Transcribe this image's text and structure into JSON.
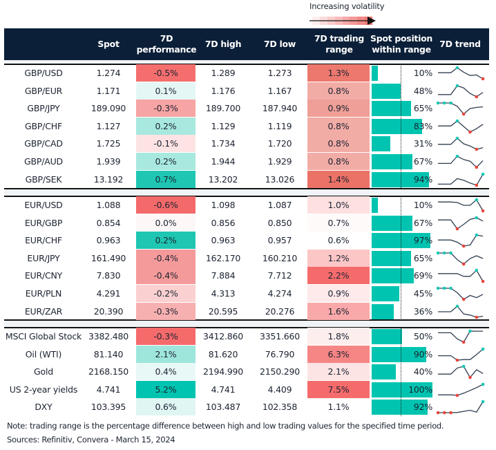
{
  "legend": {
    "label": "Increasing volatility",
    "gradient": [
      "#fdeeee",
      "#fbdcdc",
      "#f9cccc",
      "#f7bcbc",
      "#f5aaaa",
      "#f39a98",
      "#f08a86",
      "#ee7a74"
    ]
  },
  "colors": {
    "header_bg": "#0b1f38",
    "bar": "#00c4b0",
    "max_marker": "#19c7b5",
    "min_marker": "#e8453c",
    "line": "#2f3e50"
  },
  "headers": {
    "spot": "Spot",
    "perf": "7D performance",
    "high": "7D high",
    "low": "7D low",
    "range": "7D trading range",
    "position": "Spot position within range",
    "trend": "7D trend"
  },
  "groups": [
    {
      "rows": [
        {
          "name": "GBP/USD",
          "spot": "1.274",
          "perf": "-0.5%",
          "perf_color": "#f56e6e",
          "high": "1.289",
          "low": "1.273",
          "range": "1.3%",
          "range_color": "#ec786e",
          "position": 10,
          "position_label": "10%",
          "trend": [
            0.55,
            0.55,
            0.55,
            1,
            0.6,
            0.3,
            0.35,
            0
          ]
        },
        {
          "name": "GBP/EUR",
          "spot": "1.171",
          "perf": "0.1%",
          "perf_color": "#e4f7f4",
          "high": "1.176",
          "low": "1.167",
          "range": "0.8%",
          "range_color": "#f2aca6",
          "position": 48,
          "position_label": "48%",
          "trend": [
            0.2,
            0.2,
            0.2,
            1,
            0.8,
            0.3,
            0,
            0.4
          ]
        },
        {
          "name": "GBP/JPY",
          "spot": "189.090",
          "perf": "-0.3%",
          "perf_color": "#f6a4a4",
          "high": "189.700",
          "low": "187.940",
          "range": "0.9%",
          "range_color": "#ef9f97",
          "position": 65,
          "position_label": "65%",
          "trend": [
            1,
            1,
            1,
            0.7,
            0,
            0.5,
            0.6,
            0.65
          ]
        },
        {
          "name": "GBP/CHF",
          "spot": "1.127",
          "perf": "0.2%",
          "perf_color": "#a8e9df",
          "high": "1.129",
          "low": "1.119",
          "range": "0.8%",
          "range_color": "#f2aca6",
          "position": 83,
          "position_label": "83%",
          "trend": [
            0.55,
            0.55,
            0.55,
            1,
            0.5,
            0,
            0.3,
            0.7
          ]
        },
        {
          "name": "GBP/CAD",
          "spot": "1.725",
          "perf": "-0.1%",
          "perf_color": "#fde3e3",
          "high": "1.734",
          "low": "1.720",
          "range": "0.8%",
          "range_color": "#f2aca6",
          "position": 31,
          "position_label": "31%",
          "trend": [
            0.45,
            0.45,
            0.45,
            1,
            0.5,
            0.3,
            0,
            0.15
          ]
        },
        {
          "name": "GBP/AUD",
          "spot": "1.939",
          "perf": "0.2%",
          "perf_color": "#a8e9df",
          "high": "1.944",
          "low": "1.929",
          "range": "0.8%",
          "range_color": "#f2aca6",
          "position": 67,
          "position_label": "67%",
          "trend": [
            0.35,
            0.35,
            0.35,
            1,
            0.7,
            0.55,
            0,
            0.6
          ]
        },
        {
          "name": "GBP/SEK",
          "spot": "13.192",
          "perf": "0.7%",
          "perf_color": "#1fc7b3",
          "high": "13.202",
          "low": "13.026",
          "range": "1.4%",
          "range_color": "#eb7266",
          "position": 94,
          "position_label": "94%",
          "trend": [
            0.1,
            0.1,
            0.1,
            0.6,
            0.45,
            0.2,
            0,
            1
          ]
        }
      ]
    },
    {
      "rows": [
        {
          "name": "EUR/USD",
          "spot": "1.088",
          "perf": "-0.6%",
          "perf_color": "#f46a6a",
          "high": "1.098",
          "low": "1.087",
          "range": "1.0%",
          "range_color": "#fee0e0",
          "position": 10,
          "position_label": "10%",
          "trend": [
            0.8,
            0.8,
            0.8,
            0.75,
            0.5,
            0.5,
            1,
            0
          ]
        },
        {
          "name": "EUR/GBP",
          "spot": "0.854",
          "perf": "0.0%",
          "perf_color": "#fdf8f7",
          "high": "0.856",
          "low": "0.850",
          "range": "0.7%",
          "range_color": "#fffafa",
          "position": 67,
          "position_label": "67%",
          "trend": [
            0.8,
            0.8,
            0.8,
            0,
            0.4,
            0.85,
            1,
            0.7
          ]
        },
        {
          "name": "EUR/CHF",
          "spot": "0.963",
          "perf": "0.2%",
          "perf_color": "#1fc6b2",
          "high": "0.963",
          "low": "0.957",
          "range": "0.6%",
          "range_color": "#ffffff",
          "position": 97,
          "position_label": "97%",
          "trend": [
            0.55,
            0.55,
            0.55,
            0.35,
            0,
            0.1,
            1,
            0.9
          ]
        },
        {
          "name": "EUR/JPY",
          "spot": "161.490",
          "perf": "-0.4%",
          "perf_color": "#f59a9a",
          "high": "162.170",
          "low": "160.210",
          "range": "1.2%",
          "range_color": "#fcc6c6",
          "position": 65,
          "position_label": "65%",
          "trend": [
            1,
            1,
            1,
            0.4,
            0,
            0.5,
            0.75,
            0.5
          ]
        },
        {
          "name": "EUR/CNY",
          "spot": "7.830",
          "perf": "-0.4%",
          "perf_color": "#f59a9a",
          "high": "7.884",
          "low": "7.712",
          "range": "2.2%",
          "range_color": "#f56b6b",
          "position": 69,
          "position_label": "69%",
          "trend": [
            0.7,
            0.7,
            0.7,
            0.7,
            0.45,
            0.45,
            1,
            0
          ]
        },
        {
          "name": "EUR/PLN",
          "spot": "4.291",
          "perf": "-0.2%",
          "perf_color": "#fbd0d0",
          "high": "4.313",
          "low": "4.274",
          "range": "0.9%",
          "range_color": "#feeaea",
          "position": 45,
          "position_label": "45%",
          "trend": [
            1,
            1,
            1,
            0.6,
            0,
            0.35,
            0.15,
            0.45
          ]
        },
        {
          "name": "EUR/ZAR",
          "spot": "20.390",
          "perf": "-0.3%",
          "perf_color": "#f7b0b0",
          "high": "20.595",
          "low": "20.276",
          "range": "1.6%",
          "range_color": "#f9a9a9",
          "position": 36,
          "position_label": "36%",
          "trend": [
            0.5,
            0.5,
            0.5,
            1,
            0.3,
            0.2,
            0,
            0.1
          ]
        }
      ]
    },
    {
      "rows": [
        {
          "name": "MSCI Global Stock",
          "spot": "3382.480",
          "perf": "-0.3%",
          "perf_color": "#f56b6b",
          "high": "3412.860",
          "low": "3351.660",
          "range": "1.8%",
          "range_color": "#fdeeee",
          "position": 50,
          "position_label": "50%",
          "trend": [
            0.85,
            0.85,
            0.85,
            0.3,
            0,
            1,
            0.99,
            0.99
          ]
        },
        {
          "name": "Oil (WTI)",
          "spot": "81.140",
          "perf": "2.1%",
          "perf_color": "#9ee6dc",
          "high": "81.620",
          "low": "76.790",
          "range": "6.3%",
          "range_color": "#f68585",
          "position": 90,
          "position_label": "90%",
          "trend": [
            0.4,
            0.4,
            0.4,
            0,
            0.05,
            0.05,
            0.5,
            1
          ]
        },
        {
          "name": "Gold",
          "spot": "2168.150",
          "perf": "0.4%",
          "perf_color": "#e8f8f6",
          "high": "2194.990",
          "low": "2150.290",
          "range": "2.1%",
          "range_color": "#fde4e4",
          "position": 40,
          "position_label": "40%",
          "trend": [
            0.3,
            0.3,
            0.3,
            0.85,
            1,
            0,
            0.7,
            0.35
          ]
        },
        {
          "name": "US 2-year yields",
          "spot": "4.741",
          "perf": "5.2%",
          "perf_color": "#00c4b0",
          "high": "4.741",
          "low": "4.409",
          "range": "7.5%",
          "range_color": "#f56b6b",
          "position": 100,
          "position_label": "100%",
          "trend": [
            0.05,
            0.05,
            0.05,
            0,
            0.2,
            0.45,
            0.7,
            1
          ]
        },
        {
          "name": "DXY",
          "spot": "103.395",
          "perf": "0.6%",
          "perf_color": "#e0f6f3",
          "high": "103.487",
          "low": "102.358",
          "range": "1.1%",
          "range_color": "#ffffff",
          "position": 92,
          "position_label": "92%",
          "trend": [
            0,
            0,
            0,
            0.02,
            0.12,
            0.22,
            0.05,
            1
          ]
        }
      ]
    }
  ],
  "footer": {
    "note": "Note: trading range is the percentage difference between high and low trading values for the specified time period.",
    "sources": "Sources: Refinitiv, Convera - March 15, 2024"
  }
}
